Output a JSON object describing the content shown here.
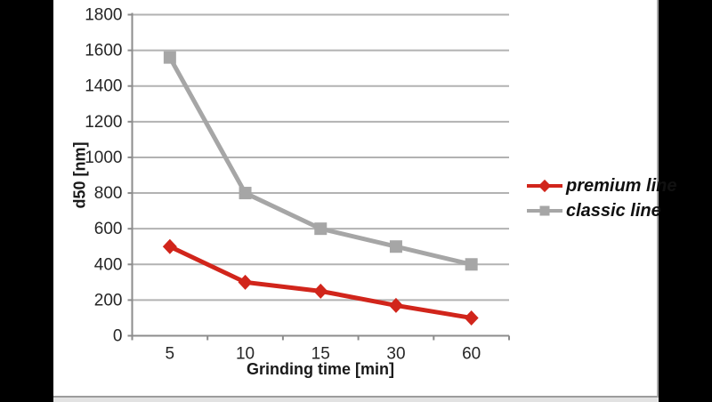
{
  "frame": {
    "background_color": "#000000",
    "panel_color": "#ffffff"
  },
  "chart_data": {
    "type": "line",
    "title": "",
    "xlabel": "Grinding time [min]",
    "ylabel": "d50 [nm]",
    "categories": [
      "5",
      "10",
      "15",
      "30",
      "60"
    ],
    "ylim": [
      0,
      1800
    ],
    "ytick_step": 200,
    "yticks": [
      "0",
      "200",
      "400",
      "600",
      "800",
      "1000",
      "1200",
      "1400",
      "1600",
      "1800"
    ],
    "grid": true,
    "legend_position": "right",
    "series": [
      {
        "name": "premium line",
        "color": "#d1251b",
        "marker": "diamond",
        "values": [
          500,
          300,
          250,
          170,
          100
        ]
      },
      {
        "name": "classic line",
        "color": "#a6a6a6",
        "marker": "square",
        "values": [
          1560,
          800,
          600,
          500,
          400
        ]
      }
    ],
    "colors": {
      "gridline": "#b2b2b2",
      "axis": "#8c8c8c",
      "tick_text": "#262626"
    }
  }
}
